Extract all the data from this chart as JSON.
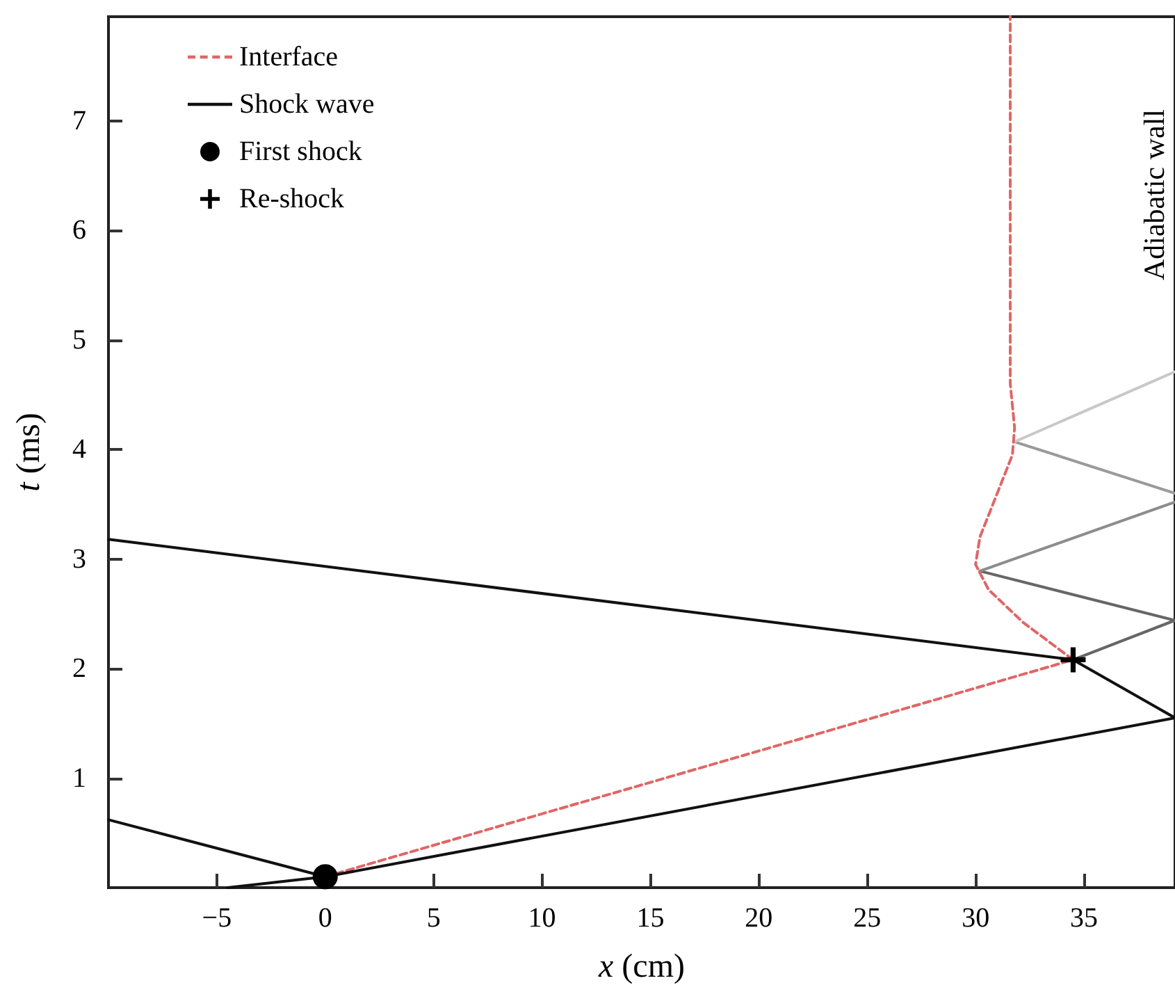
{
  "chart_data": {
    "type": "line",
    "xlabel": "x (cm)",
    "ylabel": "t (ms)",
    "xlim": [
      -10,
      39.2
    ],
    "ylim": [
      0,
      7.95
    ],
    "xticks": [
      {
        "value": -5,
        "label": "−5"
      },
      0,
      5,
      10,
      15,
      20,
      25,
      30,
      35
    ],
    "yticks": [
      1,
      2,
      3,
      4,
      5,
      6,
      7
    ],
    "grid": false,
    "legend": "top left",
    "annotations": [
      "Adiabatic wall"
    ],
    "series": [
      {
        "name": "Interface",
        "color": "#e06666",
        "line_style": "dashed",
        "marker": "none",
        "x": [
          0,
          34.5,
          32.2,
          30.6,
          30.0,
          30.2,
          30.9,
          31.7,
          31.8,
          31.6,
          31.6
        ],
        "values": [
          0.1,
          2.08,
          2.42,
          2.72,
          2.95,
          3.2,
          3.55,
          3.95,
          4.2,
          4.6,
          7.95
        ]
      },
      {
        "name": "Shock wave",
        "color": "#111111",
        "line_style": "solid",
        "marker": "none",
        "x": [
          -4.5,
          0,
          39.2,
          34.5,
          -10
        ],
        "values": [
          0,
          0.1,
          1.55,
          2.08,
          3.18
        ]
      },
      {
        "type": "line",
        "color": "#111111",
        "line_style": "solid",
        "marker": "none",
        "x": [
          -10,
          0
        ],
        "values": [
          0.62,
          0.1
        ]
      },
      {
        "type": "line",
        "color": "#666666",
        "line_style": "solid",
        "marker": "none",
        "x": [
          34.5,
          39.2,
          30.2
        ],
        "values": [
          2.08,
          2.44,
          2.89
        ]
      },
      {
        "type": "line",
        "color": "#8c8c8c",
        "line_style": "solid",
        "marker": "none",
        "x": [
          30.2,
          39.2
        ],
        "values": [
          2.89,
          3.52
        ]
      },
      {
        "type": "line",
        "color": "#9a9a9a",
        "line_style": "solid",
        "marker": "none",
        "x": [
          39.2,
          31.8
        ],
        "values": [
          3.6,
          4.07
        ]
      },
      {
        "type": "line",
        "color": "#c8c8c8",
        "line_style": "solid",
        "marker": "none",
        "x": [
          31.8,
          39.2
        ],
        "values": [
          4.07,
          4.71
        ]
      },
      {
        "name": "First shock",
        "type": "scatter",
        "color": "#000000",
        "marker": "circle",
        "x": [
          0
        ],
        "values": [
          0.1
        ]
      },
      {
        "name": "Re-shock",
        "type": "scatter",
        "color": "#000000",
        "marker": "cross",
        "x": [
          34.5
        ],
        "values": [
          2.08
        ]
      }
    ]
  }
}
